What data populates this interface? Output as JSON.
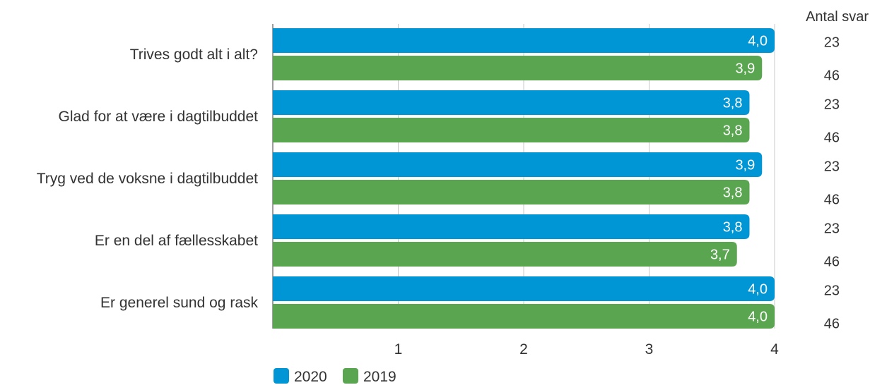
{
  "chart_data": {
    "type": "bar",
    "orientation": "horizontal",
    "categories": [
      "Trives godt alt i alt?",
      "Glad for at være i dagtilbuddet",
      "Tryg ved de voksne i dagtilbuddet",
      "Er en del af fællesskabet",
      "Er generel sund og rask"
    ],
    "series": [
      {
        "name": "2020",
        "color": "#0096d6",
        "values": [
          4.0,
          3.8,
          3.9,
          3.8,
          4.0
        ],
        "labels": [
          "4,0",
          "3,8",
          "3,9",
          "3,8",
          "4,0"
        ],
        "counts": [
          "23",
          "23",
          "23",
          "23",
          "23"
        ]
      },
      {
        "name": "2019",
        "color": "#5aa54f",
        "values": [
          3.9,
          3.8,
          3.8,
          3.7,
          4.0
        ],
        "labels": [
          "3,9",
          "3,8",
          "3,8",
          "3,7",
          "4,0"
        ],
        "counts": [
          "46",
          "46",
          "46",
          "46",
          "46"
        ]
      }
    ],
    "xlim": [
      0,
      4
    ],
    "xticks": [
      1,
      2,
      3,
      4
    ],
    "xtick_labels": [
      "1",
      "2",
      "3",
      "4"
    ],
    "count_header": "Antal svar",
    "legend_position": "bottom-left",
    "grid": true
  }
}
